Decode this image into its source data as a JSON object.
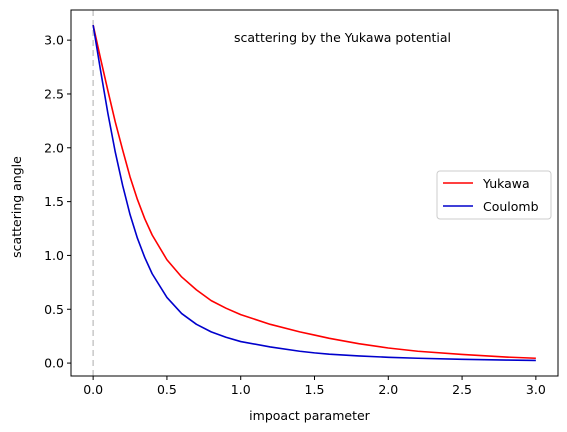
{
  "chart_data": {
    "type": "line",
    "title": "",
    "annotation": "scattering by the Yukawa potential",
    "xlabel": "impoact parameter",
    "ylabel": "scattering angle",
    "xlim": [
      -0.15,
      3.15
    ],
    "ylim": [
      -0.12,
      3.28
    ],
    "xticks": [
      0.0,
      0.5,
      1.0,
      1.5,
      2.0,
      2.5,
      3.0
    ],
    "xtick_labels": [
      "0.0",
      "0.5",
      "1.0",
      "1.5",
      "2.0",
      "2.5",
      "3.0"
    ],
    "yticks": [
      0.0,
      0.5,
      1.0,
      1.5,
      2.0,
      2.5,
      3.0
    ],
    "ytick_labels": [
      "0.0",
      "0.5",
      "1.0",
      "1.5",
      "2.0",
      "2.5",
      "3.0"
    ],
    "grid": false,
    "legend": "center-right",
    "vline": {
      "x": 0.0,
      "color": "#c8c8c8",
      "style": "dashed"
    },
    "series": [
      {
        "name": "Yukawa",
        "color": "#ff0000",
        "x": [
          0.0,
          0.05,
          0.1,
          0.15,
          0.2,
          0.25,
          0.3,
          0.35,
          0.4,
          0.5,
          0.6,
          0.7,
          0.8,
          0.9,
          1.0,
          1.2,
          1.4,
          1.5,
          1.6,
          1.8,
          2.0,
          2.2,
          2.5,
          2.8,
          3.0
        ],
        "y": [
          3.14,
          2.83,
          2.53,
          2.24,
          1.98,
          1.73,
          1.52,
          1.34,
          1.19,
          0.96,
          0.8,
          0.68,
          0.58,
          0.51,
          0.45,
          0.36,
          0.29,
          0.26,
          0.23,
          0.18,
          0.14,
          0.11,
          0.08,
          0.056,
          0.045
        ]
      },
      {
        "name": "Coulomb",
        "color": "#0000cc",
        "x": [
          0.0,
          0.05,
          0.1,
          0.15,
          0.2,
          0.25,
          0.3,
          0.35,
          0.4,
          0.5,
          0.6,
          0.7,
          0.8,
          0.9,
          1.0,
          1.2,
          1.4,
          1.5,
          1.6,
          1.8,
          2.0,
          2.2,
          2.5,
          2.8,
          3.0
        ],
        "y": [
          3.14,
          2.72,
          2.32,
          1.96,
          1.65,
          1.38,
          1.16,
          0.98,
          0.83,
          0.61,
          0.46,
          0.36,
          0.29,
          0.24,
          0.2,
          0.15,
          0.11,
          0.095,
          0.083,
          0.066,
          0.054,
          0.045,
          0.035,
          0.028,
          0.025
        ]
      }
    ]
  }
}
